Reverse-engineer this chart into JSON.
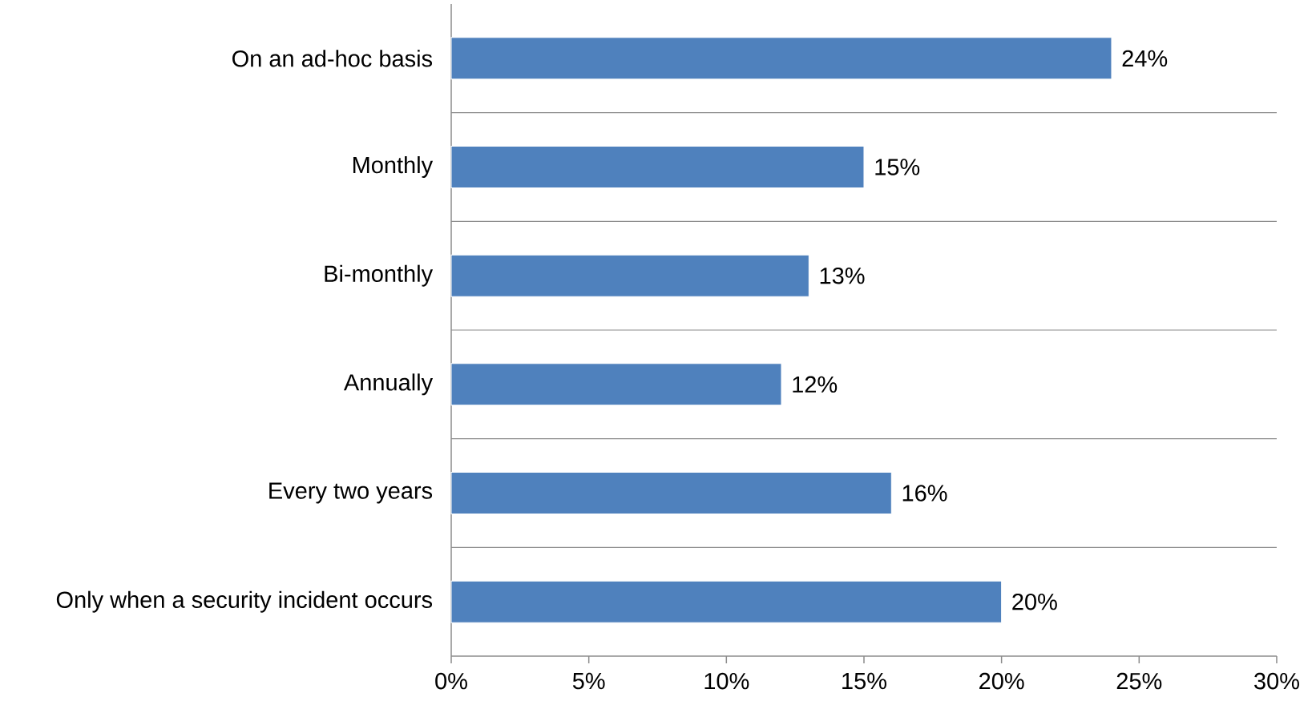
{
  "chart_data": {
    "type": "bar",
    "orientation": "horizontal",
    "categories": [
      "On an ad-hoc basis",
      "Monthly",
      "Bi-monthly",
      "Annually",
      "Every two years",
      "Only when a security incident occurs"
    ],
    "values": [
      24,
      15,
      13,
      12,
      16,
      20
    ],
    "value_labels": [
      "24%",
      "15%",
      "13%",
      "12%",
      "16%",
      "20%"
    ],
    "color": "#4f81bd",
    "xlim": [
      0,
      30
    ],
    "xticks": [
      {
        "value": 0,
        "label": "0%"
      },
      {
        "value": 5,
        "label": "5%"
      },
      {
        "value": 10,
        "label": "10%"
      },
      {
        "value": 15,
        "label": "15%"
      },
      {
        "value": 20,
        "label": "20%"
      },
      {
        "value": 25,
        "label": "25%"
      },
      {
        "value": 30,
        "label": "30%"
      }
    ],
    "grid": "y"
  }
}
